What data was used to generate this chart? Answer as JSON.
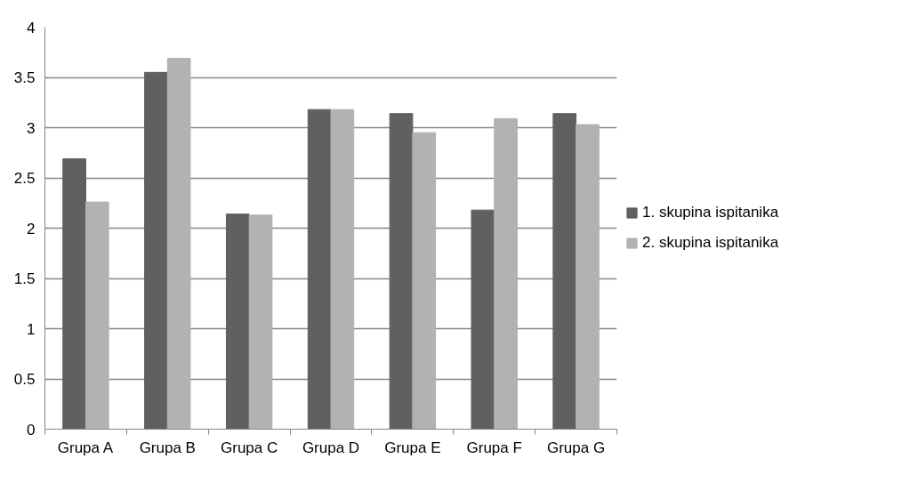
{
  "chart_data": {
    "type": "bar",
    "categories": [
      "Grupa A",
      "Grupa B",
      "Grupa C",
      "Grupa D",
      "Grupa E",
      "Grupa F",
      "Grupa G"
    ],
    "series": [
      {
        "name": "1. skupina ispitanika",
        "color": "#606060",
        "values": [
          2.69,
          3.55,
          2.14,
          3.18,
          3.14,
          2.18,
          3.14
        ]
      },
      {
        "name": "2. skupina ispitanika",
        "color": "#b2b2b2",
        "values": [
          2.26,
          3.69,
          2.13,
          3.18,
          2.95,
          3.09,
          3.03
        ]
      }
    ],
    "ylim": [
      0,
      4
    ],
    "yticks": [
      0,
      0.5,
      1,
      1.5,
      2,
      2.5,
      3,
      3.5,
      4
    ],
    "grid": "y",
    "legend": "right"
  }
}
